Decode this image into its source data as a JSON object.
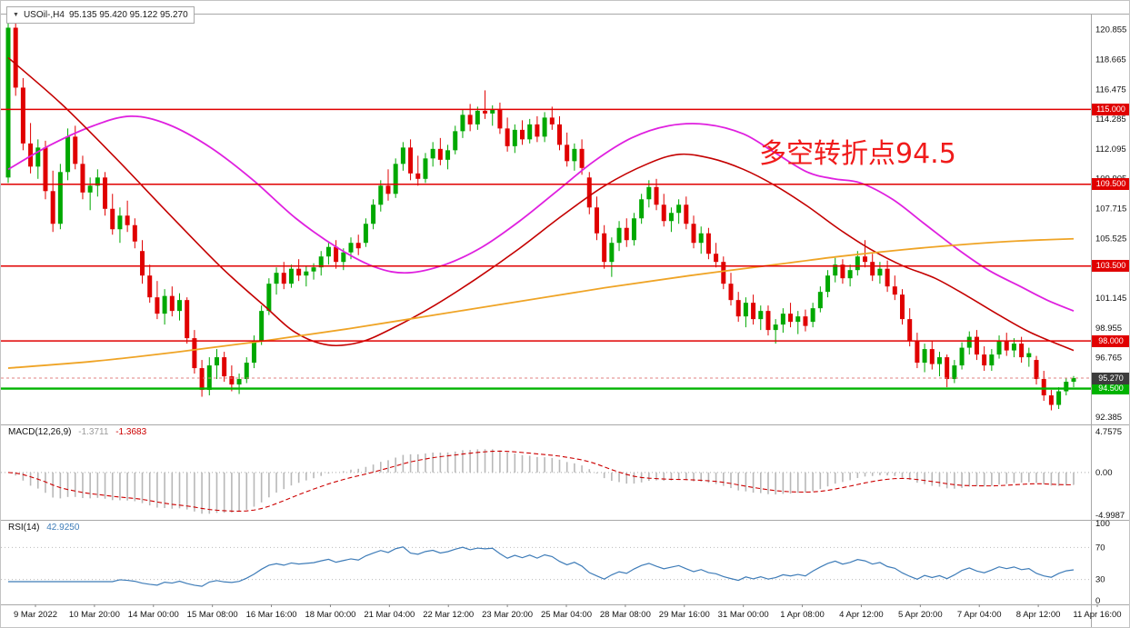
{
  "window": {
    "collapse_icon": "▼",
    "symbol": "USOil-,H4",
    "ohlc": "95.135 95.420 95.122 95.270"
  },
  "annotation": {
    "text": "多空转折点94.5",
    "color": "#f01b1b"
  },
  "colors": {
    "background": "#ffffff",
    "bull": "#00a800",
    "bear": "#e00000",
    "resistance_line": "#e00000",
    "support_line": "#00b300",
    "ma_magenta": "#df20df",
    "ma_red": "#c40000",
    "ma_orange": "#efa426",
    "macd_histogram": "#b8b8b8",
    "macd_value_main": "#9a9a9a",
    "macd_signal": "#cc0000",
    "rsi_line": "#3e7cb8",
    "axis_text": "#111111",
    "current_price_badge": "#3c3c3c",
    "current_price_line": "#e08080",
    "separator": "#a8a8a8"
  },
  "chart_data": {
    "type": "candlestick",
    "symbol": "USOil",
    "timeframe": "H4",
    "title": "USOil-,H4 95.135 95.420 95.122 95.270",
    "price_axis_labels": [
      "120.855",
      "118.665",
      "116.475",
      "114.285",
      "112.095",
      "109.905",
      "107.715",
      "105.525",
      "103.335",
      "101.145",
      "98.955",
      "96.765",
      "94.575",
      "92.385"
    ],
    "time_axis_labels": [
      "9 Mar 2022",
      "10 Mar 20:00",
      "14 Mar 00:00",
      "15 Mar 08:00",
      "16 Mar 16:00",
      "18 Mar 00:00",
      "21 Mar 04:00",
      "22 Mar 12:00",
      "23 Mar 20:00",
      "25 Mar 04:00",
      "28 Mar 08:00",
      "29 Mar 16:00",
      "31 Mar 00:00",
      "1 Apr 08:00",
      "4 Apr 12:00",
      "5 Apr 20:00",
      "7 Apr 04:00",
      "8 Apr 12:00",
      "11 Apr 16:00"
    ],
    "price_range": {
      "top": 121.9,
      "bottom": 92.0
    },
    "horizontal_lines": [
      {
        "price": 115.0,
        "label": "115.000",
        "type": "resistance"
      },
      {
        "price": 109.5,
        "label": "109.500",
        "type": "resistance"
      },
      {
        "price": 103.5,
        "label": "103.500",
        "type": "resistance"
      },
      {
        "price": 98.0,
        "label": "98.000",
        "type": "resistance"
      },
      {
        "price": 94.5,
        "label": "94.500",
        "type": "support"
      }
    ],
    "current_price": {
      "value": 95.27,
      "label": "95.270"
    },
    "candles_ohlc": [
      [
        110.0,
        121.8,
        109.6,
        121.0
      ],
      [
        121.0,
        121.6,
        116.0,
        116.6
      ],
      [
        116.6,
        117.3,
        112.0,
        112.5
      ],
      [
        112.5,
        114.0,
        110.3,
        110.8
      ],
      [
        110.8,
        112.8,
        109.9,
        112.2
      ],
      [
        112.2,
        112.7,
        108.4,
        109.0
      ],
      [
        109.0,
        110.5,
        106.0,
        106.6
      ],
      [
        106.6,
        111.0,
        106.2,
        110.4
      ],
      [
        110.4,
        113.6,
        109.8,
        113.0
      ],
      [
        113.0,
        113.8,
        110.6,
        111.0
      ],
      [
        111.0,
        111.6,
        108.4,
        108.9
      ],
      [
        108.9,
        110.0,
        107.6,
        109.4
      ],
      [
        109.4,
        110.6,
        108.6,
        110.0
      ],
      [
        110.0,
        110.4,
        107.2,
        107.7
      ],
      [
        107.7,
        108.8,
        105.8,
        106.2
      ],
      [
        106.2,
        107.8,
        105.2,
        107.2
      ],
      [
        107.2,
        108.3,
        106.0,
        106.5
      ],
      [
        106.5,
        107.0,
        104.8,
        105.3
      ],
      [
        104.6,
        105.4,
        102.2,
        102.8
      ],
      [
        102.8,
        103.6,
        100.8,
        101.2
      ],
      [
        101.2,
        102.4,
        99.6,
        100.0
      ],
      [
        100.0,
        101.8,
        99.2,
        101.3
      ],
      [
        101.3,
        102.0,
        99.8,
        100.2
      ],
      [
        100.2,
        101.5,
        99.5,
        101.0
      ],
      [
        101.0,
        101.2,
        97.8,
        98.2
      ],
      [
        98.2,
        98.8,
        95.6,
        96.0
      ],
      [
        96.0,
        96.6,
        93.9,
        94.4
      ],
      [
        94.4,
        96.8,
        94.0,
        96.2
      ],
      [
        96.2,
        97.4,
        95.2,
        96.8
      ],
      [
        96.8,
        97.2,
        95.0,
        95.4
      ],
      [
        95.4,
        96.2,
        94.3,
        94.8
      ],
      [
        94.8,
        95.6,
        94.1,
        95.2
      ],
      [
        95.2,
        96.8,
        94.9,
        96.4
      ],
      [
        96.4,
        98.4,
        96.0,
        98.0
      ],
      [
        98.0,
        100.6,
        97.7,
        100.2
      ],
      [
        100.2,
        102.6,
        99.9,
        102.2
      ],
      [
        102.2,
        103.4,
        101.4,
        103.0
      ],
      [
        103.0,
        103.8,
        101.8,
        102.2
      ],
      [
        102.2,
        103.6,
        101.9,
        103.3
      ],
      [
        103.3,
        104.0,
        102.4,
        102.8
      ],
      [
        102.8,
        103.5,
        102.0,
        103.1
      ],
      [
        103.1,
        103.7,
        102.5,
        103.4
      ],
      [
        103.4,
        104.6,
        102.8,
        104.2
      ],
      [
        104.2,
        105.2,
        103.6,
        104.9
      ],
      [
        104.9,
        105.4,
        103.3,
        103.8
      ],
      [
        103.8,
        104.8,
        103.2,
        104.5
      ],
      [
        104.5,
        105.6,
        104.0,
        105.2
      ],
      [
        105.2,
        105.8,
        104.3,
        104.8
      ],
      [
        105.2,
        107.0,
        104.9,
        106.6
      ],
      [
        106.6,
        108.4,
        106.2,
        108.0
      ],
      [
        108.0,
        109.8,
        107.5,
        109.4
      ],
      [
        109.4,
        110.6,
        108.3,
        108.8
      ],
      [
        108.8,
        111.4,
        108.5,
        111.0
      ],
      [
        111.0,
        112.6,
        110.5,
        112.2
      ],
      [
        112.2,
        112.8,
        109.8,
        110.3
      ],
      [
        110.3,
        111.6,
        109.4,
        109.9
      ],
      [
        109.9,
        111.8,
        109.6,
        111.4
      ],
      [
        111.4,
        112.6,
        110.8,
        112.1
      ],
      [
        112.1,
        112.9,
        110.9,
        111.3
      ],
      [
        111.3,
        112.4,
        110.6,
        112.0
      ],
      [
        112.0,
        113.8,
        111.7,
        113.4
      ],
      [
        113.4,
        115.0,
        112.9,
        114.6
      ],
      [
        114.6,
        115.4,
        113.4,
        113.9
      ],
      [
        113.9,
        115.2,
        113.5,
        114.9
      ],
      [
        114.9,
        116.4,
        114.3,
        114.7
      ],
      [
        114.7,
        115.3,
        113.8,
        115.0
      ],
      [
        115.0,
        115.5,
        113.2,
        113.6
      ],
      [
        113.6,
        114.4,
        111.9,
        112.3
      ],
      [
        112.3,
        113.9,
        111.8,
        113.5
      ],
      [
        113.5,
        114.2,
        112.4,
        112.8
      ],
      [
        112.8,
        114.3,
        112.5,
        113.9
      ],
      [
        113.9,
        114.5,
        112.6,
        113.0
      ],
      [
        113.0,
        114.8,
        112.6,
        114.4
      ],
      [
        114.4,
        115.2,
        113.5,
        113.9
      ],
      [
        113.9,
        114.5,
        112.0,
        112.4
      ],
      [
        112.4,
        113.3,
        110.8,
        111.2
      ],
      [
        111.2,
        112.5,
        110.5,
        112.1
      ],
      [
        112.1,
        112.8,
        110.2,
        110.7
      ],
      [
        110.0,
        110.4,
        107.3,
        107.8
      ],
      [
        107.8,
        108.6,
        105.4,
        105.9
      ],
      [
        105.9,
        106.5,
        103.3,
        103.8
      ],
      [
        103.8,
        105.6,
        102.7,
        105.2
      ],
      [
        105.2,
        106.8,
        104.6,
        106.3
      ],
      [
        106.3,
        107.0,
        104.9,
        105.4
      ],
      [
        105.4,
        107.4,
        105.0,
        107.0
      ],
      [
        107.0,
        108.8,
        106.6,
        108.4
      ],
      [
        108.4,
        109.8,
        107.8,
        109.3
      ],
      [
        109.3,
        109.9,
        107.6,
        108.0
      ],
      [
        108.0,
        108.8,
        106.4,
        106.8
      ],
      [
        106.8,
        107.8,
        106.0,
        107.4
      ],
      [
        107.4,
        108.4,
        106.6,
        108.0
      ],
      [
        108.0,
        108.6,
        106.2,
        106.6
      ],
      [
        106.6,
        107.2,
        104.8,
        105.2
      ],
      [
        105.2,
        106.4,
        104.4,
        105.9
      ],
      [
        105.9,
        106.3,
        104.0,
        104.4
      ],
      [
        104.4,
        105.2,
        103.4,
        103.8
      ],
      [
        103.8,
        104.2,
        101.8,
        102.2
      ],
      [
        102.2,
        103.0,
        100.6,
        101.0
      ],
      [
        101.0,
        101.6,
        99.4,
        99.8
      ],
      [
        99.8,
        101.2,
        99.0,
        100.8
      ],
      [
        100.8,
        101.4,
        99.2,
        99.6
      ],
      [
        99.6,
        100.6,
        98.8,
        100.2
      ],
      [
        100.2,
        100.6,
        98.4,
        98.8
      ],
      [
        98.8,
        99.6,
        97.8,
        99.2
      ],
      [
        99.2,
        100.4,
        98.6,
        100.0
      ],
      [
        100.0,
        100.8,
        99.0,
        99.4
      ],
      [
        99.4,
        100.2,
        98.5,
        99.8
      ],
      [
        99.8,
        100.3,
        98.7,
        99.1
      ],
      [
        99.4,
        100.8,
        99.0,
        100.4
      ],
      [
        100.4,
        102.0,
        100.1,
        101.6
      ],
      [
        101.6,
        103.2,
        101.2,
        102.8
      ],
      [
        102.8,
        104.1,
        102.3,
        103.6
      ],
      [
        103.6,
        104.0,
        102.2,
        102.6
      ],
      [
        102.6,
        103.6,
        102.0,
        103.2
      ],
      [
        103.2,
        104.6,
        102.8,
        104.2
      ],
      [
        104.2,
        105.4,
        103.4,
        103.8
      ],
      [
        103.8,
        104.4,
        102.4,
        102.8
      ],
      [
        102.8,
        103.8,
        102.2,
        103.3
      ],
      [
        103.3,
        103.9,
        101.6,
        102.0
      ],
      [
        102.0,
        102.8,
        101.0,
        101.4
      ],
      [
        101.4,
        101.8,
        99.2,
        99.6
      ],
      [
        99.6,
        100.4,
        97.6,
        98.0
      ],
      [
        98.0,
        98.6,
        96.0,
        96.4
      ],
      [
        96.4,
        97.8,
        95.7,
        97.4
      ],
      [
        97.4,
        98.0,
        95.9,
        96.3
      ],
      [
        96.3,
        97.2,
        95.4,
        96.8
      ],
      [
        96.8,
        97.0,
        94.6,
        95.2
      ],
      [
        95.2,
        96.6,
        94.9,
        96.2
      ],
      [
        96.2,
        97.9,
        95.9,
        97.5
      ],
      [
        97.5,
        98.7,
        97.0,
        98.3
      ],
      [
        98.3,
        98.8,
        96.6,
        97.0
      ],
      [
        97.0,
        97.6,
        95.8,
        96.2
      ],
      [
        96.2,
        97.4,
        95.8,
        97.0
      ],
      [
        97.0,
        98.4,
        96.7,
        98.0
      ],
      [
        98.0,
        98.6,
        96.9,
        97.3
      ],
      [
        97.3,
        98.2,
        96.8,
        97.8
      ],
      [
        97.8,
        98.3,
        96.4,
        96.8
      ],
      [
        96.8,
        97.5,
        96.1,
        97.1
      ],
      [
        96.6,
        96.9,
        94.8,
        95.2
      ],
      [
        95.2,
        95.8,
        93.6,
        94.0
      ],
      [
        94.0,
        94.4,
        92.9,
        93.3
      ],
      [
        93.3,
        94.6,
        93.0,
        94.3
      ],
      [
        94.3,
        95.3,
        94.0,
        95.0
      ],
      [
        95.0,
        95.42,
        94.6,
        95.27
      ]
    ],
    "moving_averages": [
      {
        "name": "ma-magenta",
        "color_key": "ma_magenta",
        "width": 1.8,
        "points": [
          [
            0,
            110.6
          ],
          [
            0.04,
            112.4
          ],
          [
            0.08,
            113.8
          ],
          [
            0.115,
            114.5
          ],
          [
            0.15,
            113.9
          ],
          [
            0.19,
            112.2
          ],
          [
            0.23,
            109.8
          ],
          [
            0.27,
            107.0
          ],
          [
            0.31,
            104.8
          ],
          [
            0.345,
            103.4
          ],
          [
            0.375,
            103.0
          ],
          [
            0.41,
            103.6
          ],
          [
            0.445,
            104.9
          ],
          [
            0.48,
            106.8
          ],
          [
            0.515,
            109.0
          ],
          [
            0.55,
            111.2
          ],
          [
            0.585,
            112.9
          ],
          [
            0.62,
            113.8
          ],
          [
            0.655,
            113.9
          ],
          [
            0.69,
            113.2
          ],
          [
            0.72,
            111.8
          ],
          [
            0.75,
            110.4
          ],
          [
            0.775,
            109.9
          ],
          [
            0.8,
            109.6
          ],
          [
            0.83,
            108.4
          ],
          [
            0.86,
            106.6
          ],
          [
            0.89,
            104.8
          ],
          [
            0.92,
            103.2
          ],
          [
            0.95,
            102.0
          ],
          [
            0.975,
            101.0
          ],
          [
            1,
            100.2
          ]
        ]
      },
      {
        "name": "ma-red",
        "color_key": "ma_red",
        "width": 1.6,
        "points": [
          [
            0,
            118.8
          ],
          [
            0.05,
            115.4
          ],
          [
            0.1,
            111.5
          ],
          [
            0.15,
            107.4
          ],
          [
            0.2,
            103.4
          ],
          [
            0.24,
            100.6
          ],
          [
            0.27,
            98.6
          ],
          [
            0.3,
            97.7
          ],
          [
            0.33,
            97.9
          ],
          [
            0.36,
            98.9
          ],
          [
            0.4,
            100.6
          ],
          [
            0.44,
            102.6
          ],
          [
            0.48,
            104.8
          ],
          [
            0.52,
            107.2
          ],
          [
            0.56,
            109.4
          ],
          [
            0.6,
            111.0
          ],
          [
            0.63,
            111.7
          ],
          [
            0.66,
            111.4
          ],
          [
            0.69,
            110.6
          ],
          [
            0.72,
            109.4
          ],
          [
            0.75,
            107.9
          ],
          [
            0.78,
            106.2
          ],
          [
            0.81,
            104.7
          ],
          [
            0.84,
            103.5
          ],
          [
            0.87,
            102.6
          ],
          [
            0.9,
            101.3
          ],
          [
            0.93,
            99.9
          ],
          [
            0.96,
            98.6
          ],
          [
            1,
            97.3
          ]
        ]
      },
      {
        "name": "ma-orange",
        "color_key": "ma_orange",
        "width": 1.8,
        "points": [
          [
            0,
            96.0
          ],
          [
            0.08,
            96.5
          ],
          [
            0.16,
            97.2
          ],
          [
            0.24,
            98.0
          ],
          [
            0.32,
            98.9
          ],
          [
            0.4,
            99.9
          ],
          [
            0.48,
            100.9
          ],
          [
            0.56,
            101.9
          ],
          [
            0.64,
            102.8
          ],
          [
            0.72,
            103.6
          ],
          [
            0.78,
            104.2
          ],
          [
            0.84,
            104.7
          ],
          [
            0.9,
            105.1
          ],
          [
            0.95,
            105.35
          ],
          [
            1,
            105.5
          ]
        ]
      }
    ],
    "macd": {
      "label": "MACD(12,26,9)",
      "main_value": "-1.3711",
      "signal_value": "-1.3683",
      "fast": 12,
      "slow": 26,
      "signal": 9,
      "axis_labels": [
        {
          "value": 4.7575,
          "label": "4.7575"
        },
        {
          "value": 0,
          "label": "0.00"
        },
        {
          "value": -4.9987,
          "label": "-4.9987"
        }
      ],
      "scale": {
        "max": 4.7575,
        "min": -4.9987
      }
    },
    "rsi": {
      "label": "RSI(14)",
      "value": "42.9250",
      "period": 14,
      "levels": [
        70,
        30
      ],
      "axis_labels": [
        {
          "value": 100,
          "label": "100"
        },
        {
          "value": 70,
          "label": "70"
        },
        {
          "value": 30,
          "label": "30"
        },
        {
          "value": 0,
          "label": "0"
        }
      ],
      "scale": {
        "max": 100,
        "min": 0
      }
    }
  }
}
